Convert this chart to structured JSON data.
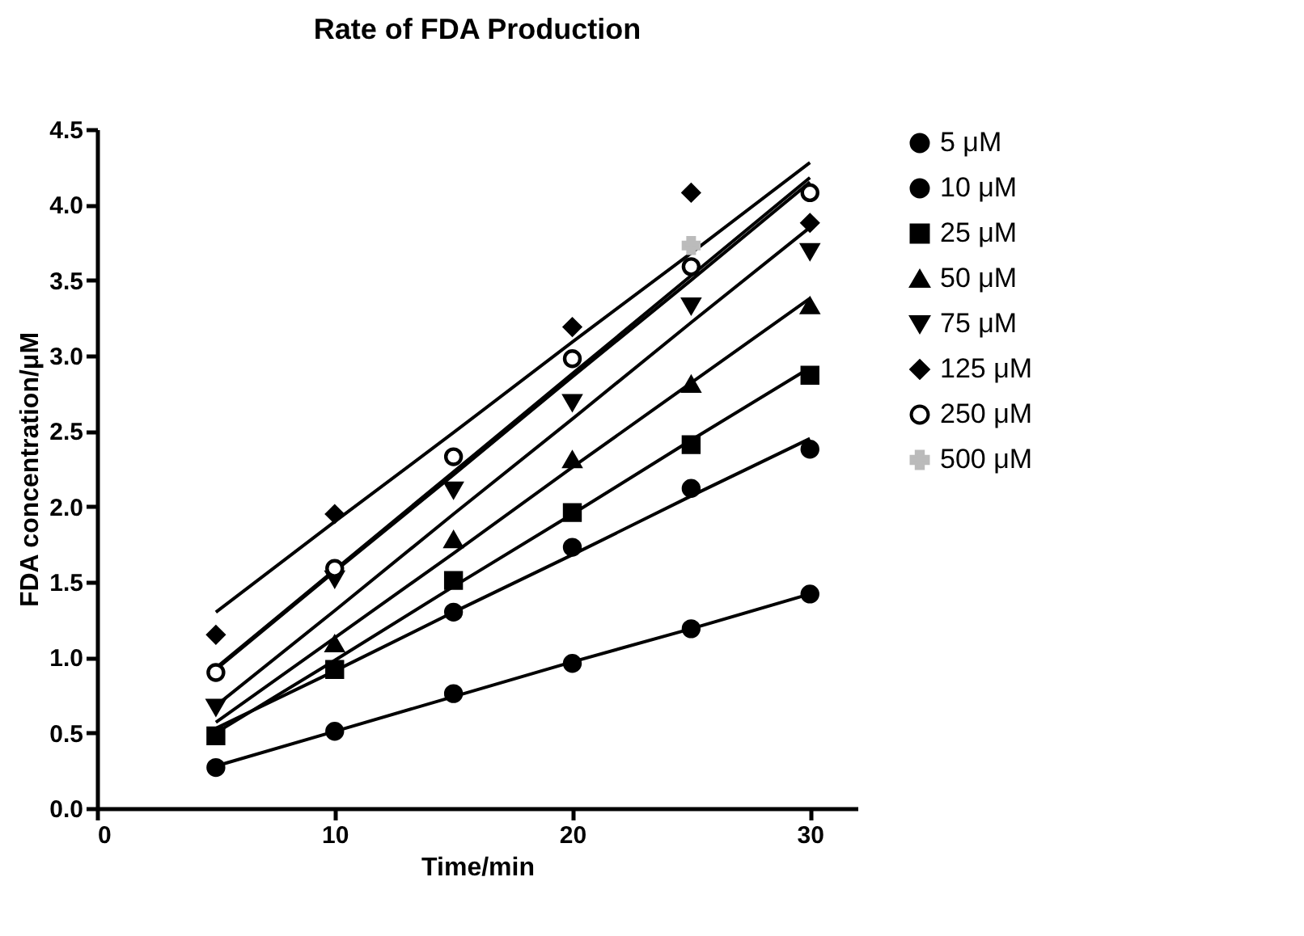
{
  "chart_data": {
    "type": "scatter",
    "title": "Rate of FDA Production",
    "xlabel": "Time/min",
    "ylabel": "FDA concentration/μM",
    "x": [
      5,
      10,
      15,
      20,
      25,
      30
    ],
    "xlim": [
      0,
      32
    ],
    "xticks": [
      0,
      10,
      20,
      30
    ],
    "ylim": [
      0,
      4.5
    ],
    "yticks": [
      {
        "value": 0,
        "label": "0.0"
      },
      {
        "value": 0.5,
        "label": "0.5"
      },
      {
        "value": 1,
        "label": "1.0"
      },
      {
        "value": 1.5,
        "label": "1.5"
      },
      {
        "value": 2,
        "label": "2.0"
      },
      {
        "value": 2.5,
        "label": "2.5"
      },
      {
        "value": 3,
        "label": "3.0"
      },
      {
        "value": 3.5,
        "label": "3.5"
      },
      {
        "value": 4,
        "label": "4.0"
      },
      {
        "value": 4.5,
        "label": "4.5"
      }
    ],
    "grid": false,
    "legend": "right",
    "series": [
      {
        "name": "5 μM",
        "type": "scatter",
        "marker": "circle",
        "color": "#000000",
        "values": [
          0.27,
          0.51,
          0.76,
          0.96,
          1.19,
          1.42
        ]
      },
      {
        "name": "10 μM",
        "type": "scatter",
        "marker": "circle",
        "color": "#000000",
        "values": [
          null,
          null,
          1.3,
          1.73,
          2.12,
          2.38
        ]
      },
      {
        "name": "25 μM",
        "type": "scatter",
        "marker": "square",
        "color": "#000000",
        "values": [
          0.48,
          0.92,
          1.51,
          1.96,
          2.41,
          2.87
        ]
      },
      {
        "name": "50 μM",
        "type": "scatter",
        "marker": "triangle",
        "color": "#000000",
        "values": [
          null,
          1.09,
          1.78,
          2.31,
          2.81,
          3.33
        ]
      },
      {
        "name": "75 μM",
        "type": "scatter",
        "marker": "triangle-down",
        "color": "#000000",
        "values": [
          0.67,
          1.52,
          2.11,
          2.69,
          3.33,
          3.69
        ]
      },
      {
        "name": "125 μM",
        "type": "scatter",
        "marker": "diamond",
        "color": "#000000",
        "values": [
          1.15,
          1.95,
          null,
          3.19,
          4.08,
          3.88
        ]
      },
      {
        "name": "250 μM",
        "type": "scatter",
        "marker": "circle-open",
        "color": "#000000",
        "values": [
          0.9,
          1.59,
          2.33,
          2.98,
          3.59,
          4.08
        ]
      },
      {
        "name": "500 μM",
        "type": "scatter",
        "marker": "cross",
        "color": "#bbbbbb",
        "values": [
          null,
          null,
          null,
          null,
          3.73,
          null
        ]
      },
      {
        "type": "line",
        "color": "#000000",
        "values": [
          0.28,
          0.51,
          0.74,
          0.97,
          1.19,
          1.42
        ]
      },
      {
        "type": "line",
        "color": "#000000",
        "values": [
          0.53,
          0.91,
          1.3,
          1.68,
          2.07,
          2.45
        ]
      },
      {
        "type": "line",
        "color": "#000000",
        "values": [
          0.5,
          0.98,
          1.47,
          1.95,
          2.44,
          2.92
        ]
      },
      {
        "type": "line",
        "color": "#000000",
        "values": [
          0.57,
          1.13,
          1.69,
          2.26,
          2.82,
          3.38
        ]
      },
      {
        "type": "line",
        "color": "#000000",
        "values": [
          0.68,
          1.31,
          1.95,
          2.58,
          3.22,
          3.85
        ]
      },
      {
        "type": "line",
        "color": "#000000",
        "values": [
          1.3,
          1.9,
          2.49,
          3.09,
          3.68,
          4.28
        ]
      },
      {
        "type": "line",
        "color": "#000000",
        "values": [
          0.92,
          1.57,
          2.21,
          2.86,
          3.5,
          4.15
        ]
      },
      {
        "type": "line",
        "color": "#000000",
        "values": [
          0.93,
          1.58,
          2.23,
          2.88,
          3.53,
          4.18
        ]
      }
    ]
  }
}
